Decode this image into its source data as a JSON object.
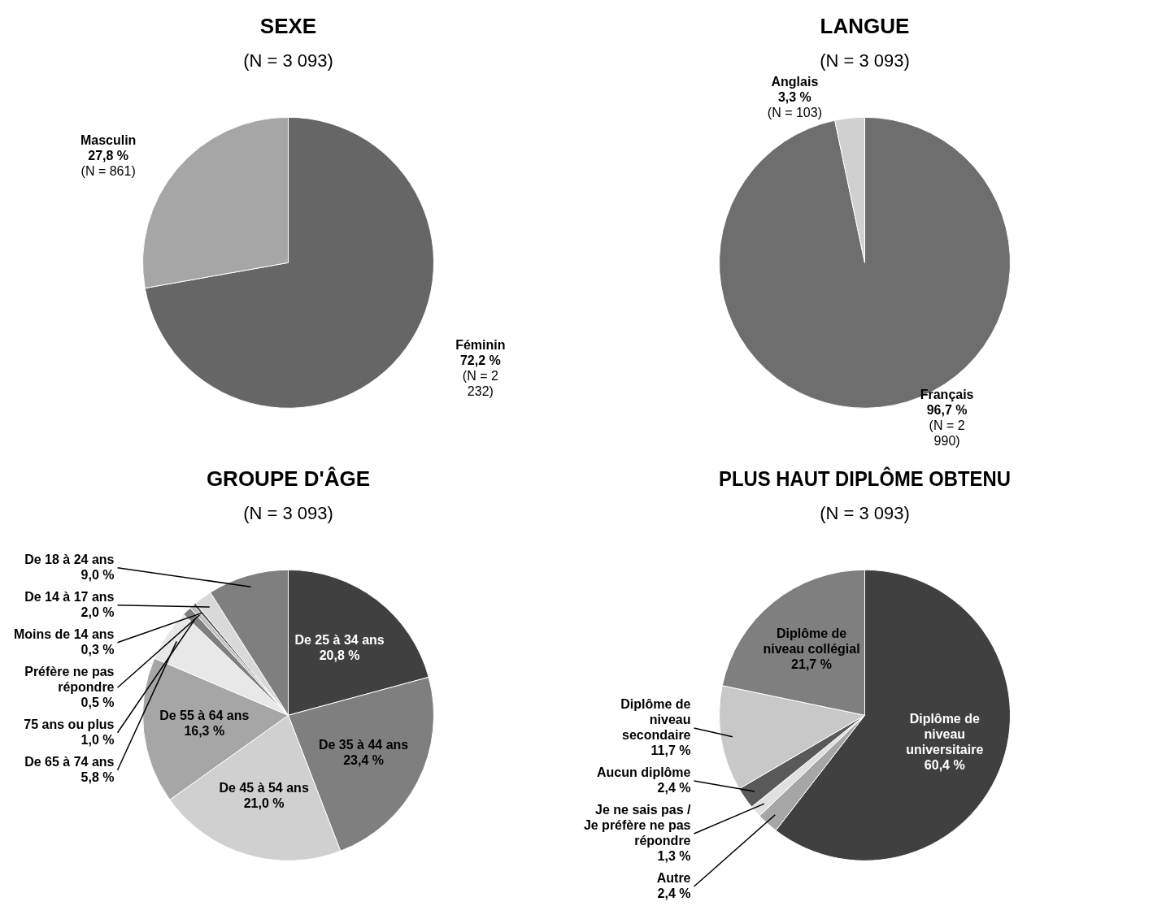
{
  "chart_data": [
    {
      "type": "pie",
      "title": "SEXE",
      "subtitle": "(N = 3 093)",
      "categories": [
        "Féminin",
        "Masculin"
      ],
      "values": [
        72.2,
        27.8
      ],
      "colors": [
        "#666666",
        "#a6a6a6"
      ],
      "value_labels": [
        "72,2 % (N = 2 232)",
        "27,8 % (N = 861)"
      ]
    },
    {
      "type": "pie",
      "title": "LANGUE",
      "subtitle": "(N = 3 093)",
      "categories": [
        "Français",
        "Anglais"
      ],
      "values": [
        96.7,
        3.3
      ],
      "colors": [
        "#6e6e6e",
        "#d0d0d0"
      ],
      "value_labels": [
        "96,7 % (N = 2 990)",
        "3,3 % (N = 103)"
      ]
    },
    {
      "type": "pie",
      "title": "GROUPE D'ÂGE",
      "subtitle": "(N = 3 093)",
      "categories": [
        "De 25 à 34 ans",
        "De 35 à 44 ans",
        "De 45 à 54 ans",
        "De 55 à 64 ans",
        "De 65 à 74 ans",
        "75 ans ou plus",
        "Préfère ne pas répondre",
        "Moins de 14 ans",
        "De 14 à 17 ans",
        "De 18 à 24 ans"
      ],
      "values": [
        20.8,
        23.4,
        21.0,
        16.3,
        5.8,
        1.0,
        0.5,
        0.3,
        2.0,
        9.0
      ],
      "colors": [
        "#404040",
        "#7f7f7f",
        "#d0d0d0",
        "#a6a6a6",
        "#e8e8e8",
        "#7f7f7f",
        "#bfbfbf",
        "#595959",
        "#d9d9d9",
        "#7f7f7f"
      ],
      "value_labels": [
        "20,8 %",
        "23,4 %",
        "21,0 %",
        "16,3 %",
        "5,8 %",
        "1,0 %",
        "0,5 %",
        "0,3 %",
        "2,0 %",
        "9,0 %"
      ]
    },
    {
      "type": "pie",
      "title": "PLUS HAUT DIPLÔME OBTENU",
      "subtitle": "(N = 3 093)",
      "categories": [
        "Diplôme de niveau universitaire",
        "Autre",
        "Je ne sais pas / Je préfère ne pas répondre",
        "Aucun diplôme",
        "Diplôme de niveau secondaire",
        "Diplôme de niveau collégial"
      ],
      "values": [
        60.4,
        2.4,
        1.3,
        2.4,
        11.7,
        21.7
      ],
      "colors": [
        "#404040",
        "#a6a6a6",
        "#e0e0e0",
        "#595959",
        "#c8c8c8",
        "#7f7f7f"
      ],
      "value_labels": [
        "60,4 %",
        "2,4 %",
        "1,3 %",
        "2,4 %",
        "11,7 %",
        "21,7 %"
      ]
    }
  ]
}
